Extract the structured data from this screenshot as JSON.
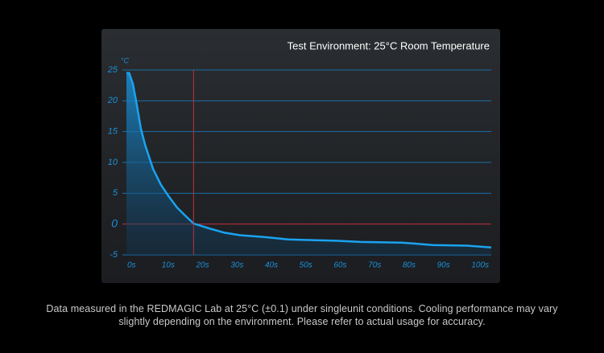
{
  "chart_data": {
    "type": "line",
    "title": "Test Environment: 25°C Room Temperature",
    "y_unit": "°C",
    "x": [
      0,
      0.8,
      1.9,
      3,
      4.2,
      5.4,
      7.7,
      10,
      12.4,
      14.7,
      17,
      19.5,
      24,
      28.5,
      33,
      40,
      47,
      54,
      61,
      68,
      80,
      89,
      99,
      106
    ],
    "series": [
      {
        "color": "#1aa3f0",
        "values": [
          24.5,
          24.5,
          22.7,
          19.4,
          15.5,
          12.9,
          9,
          6.4,
          4.4,
          2.7,
          1.4,
          0.1,
          -0.7,
          -1.4,
          -1.8,
          -2.1,
          -2.5,
          -2.6,
          -2.7,
          -2.9,
          -3.0,
          -3.4,
          -3.5,
          -3.8
        ]
      }
    ],
    "marker_x": 19.5,
    "xlim": [
      0,
      106
    ],
    "xticks": [
      {
        "value": 0,
        "label": "0s"
      },
      {
        "value": 10,
        "label": "10s"
      },
      {
        "value": 20,
        "label": "20s"
      },
      {
        "value": 30,
        "label": "30s"
      },
      {
        "value": 40,
        "label": "40s"
      },
      {
        "value": 50,
        "label": "50s"
      },
      {
        "value": 60,
        "label": "60s"
      },
      {
        "value": 70,
        "label": "70s"
      },
      {
        "value": 80,
        "label": "80s"
      },
      {
        "value": 90,
        "label": "90s"
      },
      {
        "value": 100,
        "label": "100s"
      }
    ],
    "ylim": [
      -5,
      25
    ],
    "yticks": [
      -5,
      0,
      5,
      10,
      15,
      20,
      25
    ],
    "grid": true
  },
  "footnote_lines": [
    "Data measured in the REDMAGIC Lab at 25°C (±0.1) under singleunit conditions. Cooling performance may vary",
    "slightly depending on the environment. Please refer to actual usage for accuracy."
  ]
}
